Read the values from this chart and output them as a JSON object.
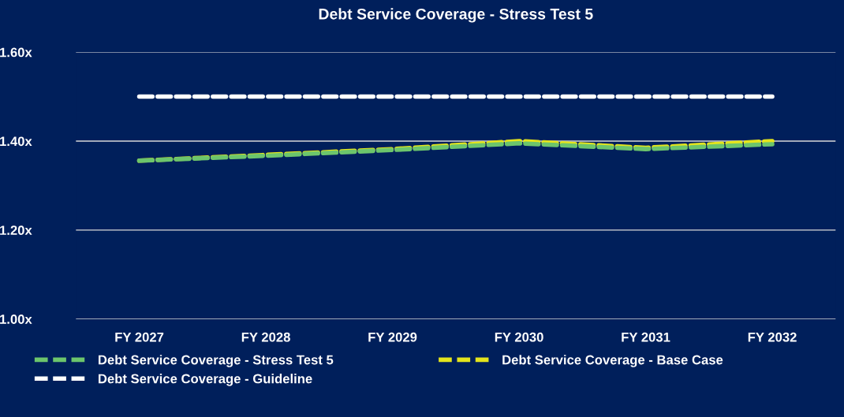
{
  "chart_data": {
    "type": "line",
    "title": "Debt Service Coverage - Stress Test 5",
    "categories": [
      "FY 2027",
      "FY 2028",
      "FY 2029",
      "FY 2030",
      "FY 2031",
      "FY 2032"
    ],
    "series": [
      {
        "name": "Debt Service Coverage - Stress Test 5",
        "color": "#6cc56c",
        "line_style": "dashed",
        "values": [
          1.356,
          1.367,
          1.38,
          1.395,
          1.382,
          1.393
        ]
      },
      {
        "name": "Debt Service Coverage - Base Case",
        "color": "#e4e41c",
        "line_style": "dashed",
        "values": [
          1.356,
          1.369,
          1.382,
          1.4,
          1.385,
          1.4
        ]
      },
      {
        "name": "Debt Service Coverage - Guideline",
        "color": "#ffffff",
        "line_style": "dashed",
        "values": [
          1.5,
          1.5,
          1.5,
          1.5,
          1.5,
          1.5
        ]
      }
    ],
    "ylim": [
      1.0,
      1.6
    ],
    "yticks": [
      {
        "value": 1.0,
        "label": "1.00x"
      },
      {
        "value": 1.2,
        "label": "1.20x"
      },
      {
        "value": 1.4,
        "label": "1.40x"
      },
      {
        "value": 1.6,
        "label": "1.60x"
      }
    ],
    "grid": "y",
    "legend": "bottom",
    "marker": "none"
  }
}
